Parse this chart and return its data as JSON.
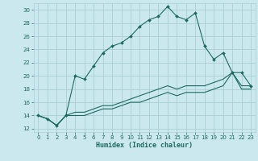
{
  "xlabel": "Humidex (Indice chaleur)",
  "background_color": "#cce8ef",
  "grid_color": "#aacdd6",
  "line_color": "#1a6b5e",
  "xlim": [
    -0.5,
    23.5
  ],
  "ylim": [
    11.5,
    31.0
  ],
  "xticks": [
    0,
    1,
    2,
    3,
    4,
    5,
    6,
    7,
    8,
    9,
    10,
    11,
    12,
    13,
    14,
    15,
    16,
    17,
    18,
    19,
    20,
    21,
    22,
    23
  ],
  "yticks": [
    12,
    14,
    16,
    18,
    20,
    22,
    24,
    26,
    28,
    30
  ],
  "line1_x": [
    0,
    1,
    2,
    3,
    4,
    5,
    6,
    7,
    8,
    9,
    10,
    11,
    12,
    13,
    14,
    15,
    16,
    17,
    18,
    19,
    20,
    21,
    22,
    23
  ],
  "line1_y": [
    14.0,
    13.5,
    12.5,
    14.0,
    20.0,
    19.5,
    21.5,
    23.5,
    24.5,
    25.0,
    26.0,
    27.5,
    28.5,
    29.0,
    30.5,
    29.0,
    28.5,
    29.5,
    24.5,
    22.5,
    23.5,
    20.5,
    20.5,
    18.5
  ],
  "line2_x": [
    0,
    1,
    2,
    3,
    4,
    5,
    6,
    7,
    8,
    9,
    10,
    11,
    12,
    13,
    14,
    15,
    16,
    17,
    18,
    19,
    20,
    21,
    22,
    23
  ],
  "line2_y": [
    14.0,
    13.5,
    12.5,
    14.0,
    14.5,
    14.5,
    15.0,
    15.5,
    15.5,
    16.0,
    16.5,
    17.0,
    17.5,
    18.0,
    18.5,
    18.0,
    18.5,
    18.5,
    18.5,
    19.0,
    19.5,
    20.5,
    18.5,
    18.5
  ],
  "line3_x": [
    0,
    1,
    2,
    3,
    4,
    5,
    6,
    7,
    8,
    9,
    10,
    11,
    12,
    13,
    14,
    15,
    16,
    17,
    18,
    19,
    20,
    21,
    22,
    23
  ],
  "line3_y": [
    14.0,
    13.5,
    12.5,
    14.0,
    14.0,
    14.0,
    14.5,
    15.0,
    15.0,
    15.5,
    16.0,
    16.0,
    16.5,
    17.0,
    17.5,
    17.0,
    17.5,
    17.5,
    17.5,
    18.0,
    18.5,
    20.5,
    18.0,
    18.0
  ],
  "xlabel_fontsize": 6,
  "tick_fontsize": 5
}
